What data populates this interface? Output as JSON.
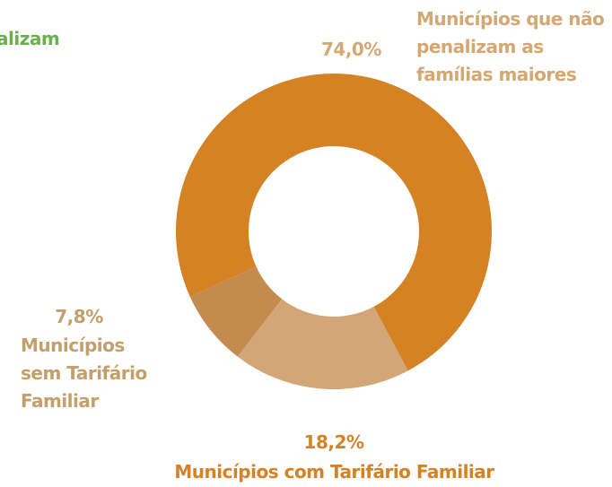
{
  "chart_data": {
    "type": "pie",
    "categories": [
      "Municípios que não penalizam as famílias maiores",
      "Municípios com Tarifário Familiar",
      "Municípios sem Tarifário Familiar"
    ],
    "values": [
      74.0,
      18.2,
      7.8
    ],
    "value_labels": [
      "74,0%",
      "18,2%",
      "7,8%"
    ],
    "colors": [
      "#d48224",
      "#d2a676",
      "#c48b4f"
    ],
    "annotations": [
      "alizam"
    ]
  }
}
